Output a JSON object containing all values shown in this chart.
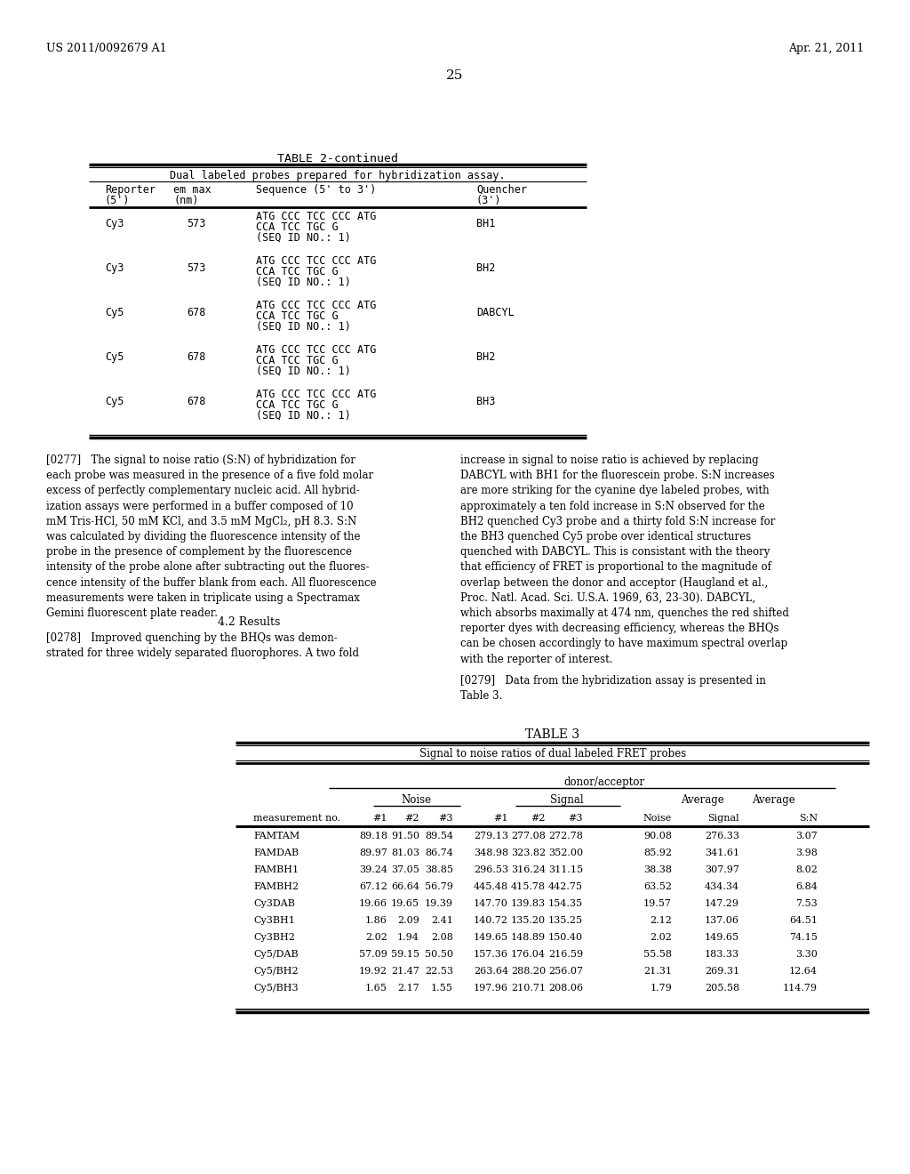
{
  "header_left": "US 2011/0092679 A1",
  "header_right": "Apr. 21, 2011",
  "page_number": "25",
  "table2_title": "TABLE 2-continued",
  "table2_subtitle": "Dual labeled probes prepared for hybridization assay.",
  "table2_rows": [
    [
      "Cy3",
      "573",
      "ATG CCC TCC CCC ATG\nCCA TCC TGC G\n(SEQ ID NO.: 1)",
      "BH1"
    ],
    [
      "Cy3",
      "573",
      "ATG CCC TCC CCC ATG\nCCA TCC TGC G\n(SEQ ID NO.: 1)",
      "BH2"
    ],
    [
      "Cy5",
      "678",
      "ATG CCC TCC CCC ATG\nCCA TCC TGC G\n(SEQ ID NO.: 1)",
      "DABCYL"
    ],
    [
      "Cy5",
      "678",
      "ATG CCC TCC CCC ATG\nCCA TCC TGC G\n(SEQ ID NO.: 1)",
      "BH2"
    ],
    [
      "Cy5",
      "678",
      "ATG CCC TCC CCC ATG\nCCA TCC TGC G\n(SEQ ID NO.: 1)",
      "BH3"
    ]
  ],
  "para_left_0277": "[0277]   The signal to noise ratio (S:N) of hybridization for\neach probe was measured in the presence of a five fold molar\nexcess of perfectly complementary nucleic acid. All hybrid-\nization assays were performed in a buffer composed of 10\nmM Tris-HCl, 50 mM KCl, and 3.5 mM MgCl₂, pH 8.3. S:N\nwas calculated by dividing the fluorescence intensity of the\nprobe in the presence of complement by the fluorescence\nintensity of the probe alone after subtracting out the fluores-\ncence intensity of the buffer blank from each. All fluorescence\nmeasurements were taken in triplicate using a Spectramax\nGemini fluorescent plate reader.",
  "section_42": "4.2 Results",
  "para_left_0278": "[0278]   Improved quenching by the BHQs was demon-\nstrated for three widely separated fluorophores. A two fold",
  "para_right_0277": "increase in signal to noise ratio is achieved by replacing\nDABCYL with BH1 for the fluorescein probe. S:N increases\nare more striking for the cyanine dye labeled probes, with\napproximately a ten fold increase in S:N observed for the\nBH2 quenched Cy3 probe and a thirty fold S:N increase for\nthe BH3 quenched Cy5 probe over identical structures\nquenched with DABCYL. This is consistant with the theory\nthat efficiency of FRET is proportional to the magnitude of\noverlap between the donor and acceptor (Haugland et al.,\nProc. Natl. Acad. Sci. U.S.A. 1969, 63, 23-30). DABCYL,\nwhich absorbs maximally at 474 nm, quenches the red shifted\nreporter dyes with decreasing efficiency, whereas the BHQs\ncan be chosen accordingly to have maximum spectral overlap\nwith the reporter of interest.",
  "para_right_0279": "[0279]   Data from the hybridization assay is presented in\nTable 3.",
  "table3_title": "TABLE 3",
  "table3_subtitle": "Signal to noise ratios of dual labeled FRET probes",
  "table3_donor_acceptor": "donor/acceptor",
  "table3_rows": [
    [
      "FAMTAM",
      "89.18",
      "91.50",
      "89.54",
      "279.13",
      "277.08",
      "272.78",
      "90.08",
      "276.33",
      "3.07"
    ],
    [
      "FAMDAB",
      "89.97",
      "81.03",
      "86.74",
      "348.98",
      "323.82",
      "352.00",
      "85.92",
      "341.61",
      "3.98"
    ],
    [
      "FAMBH1",
      "39.24",
      "37.05",
      "38.85",
      "296.53",
      "316.24",
      "311.15",
      "38.38",
      "307.97",
      "8.02"
    ],
    [
      "FAMBH2",
      "67.12",
      "66.64",
      "56.79",
      "445.48",
      "415.78",
      "442.75",
      "63.52",
      "434.34",
      "6.84"
    ],
    [
      "Cy3DAB",
      "19.66",
      "19.65",
      "19.39",
      "147.70",
      "139.83",
      "154.35",
      "19.57",
      "147.29",
      "7.53"
    ],
    [
      "Cy3BH1",
      "1.86",
      "2.09",
      "2.41",
      "140.72",
      "135.20",
      "135.25",
      "2.12",
      "137.06",
      "64.51"
    ],
    [
      "Cy3BH2",
      "2.02",
      "1.94",
      "2.08",
      "149.65",
      "148.89",
      "150.40",
      "2.02",
      "149.65",
      "74.15"
    ],
    [
      "Cy5/DAB",
      "57.09",
      "59.15",
      "50.50",
      "157.36",
      "176.04",
      "216.59",
      "55.58",
      "183.33",
      "3.30"
    ],
    [
      "Cy5/BH2",
      "19.92",
      "21.47",
      "22.53",
      "263.64",
      "288.20",
      "256.07",
      "21.31",
      "269.31",
      "12.64"
    ],
    [
      "Cy5/BH3",
      "1.65",
      "2.17",
      "1.55",
      "197.96",
      "210.71",
      "208.06",
      "1.79",
      "205.58",
      "114.79"
    ]
  ]
}
